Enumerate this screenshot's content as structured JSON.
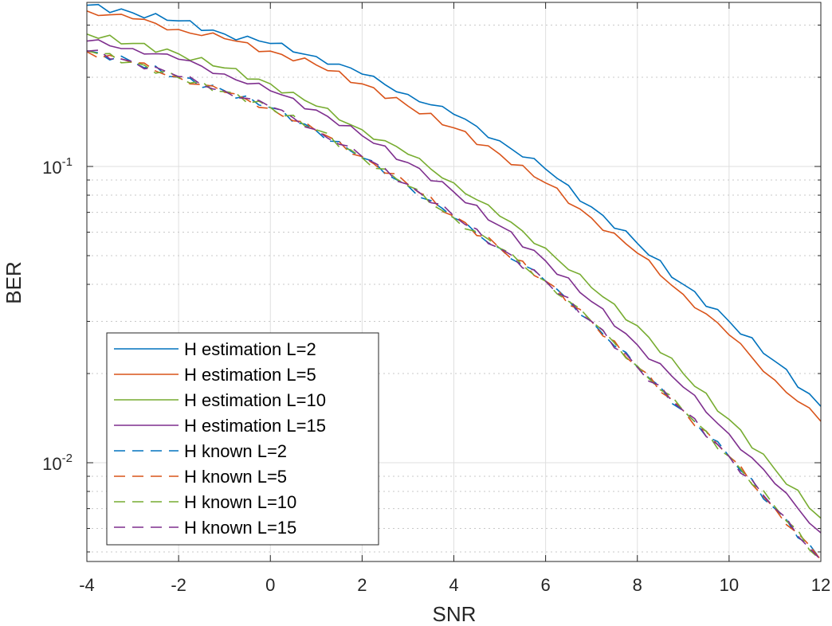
{
  "chart_data": {
    "type": "line",
    "xlabel": "SNR",
    "ylabel": "BER",
    "xlim": [
      -4,
      12
    ],
    "ylim": [
      0.0045,
      0.36
    ],
    "yscale": "log",
    "grid": true,
    "minor_grid_y": true,
    "xticks": [
      -4,
      -2,
      0,
      2,
      4,
      6,
      8,
      10,
      12
    ],
    "xtick_labels": [
      "-4",
      "-2",
      "0",
      "2",
      "4",
      "6",
      "8",
      "10",
      "12"
    ],
    "yticks": [
      {
        "value": 0.1,
        "base": "10",
        "exp": "-1"
      },
      {
        "value": 0.01,
        "base": "10",
        "exp": "-2"
      }
    ],
    "legend_position": "bottom-left",
    "x": [
      -4,
      -3,
      -2,
      -1,
      0,
      1,
      2,
      3,
      4,
      5,
      6,
      7,
      8,
      9,
      10,
      11,
      12
    ],
    "series": [
      {
        "name": "H estimation L=2",
        "color": "#0072BD",
        "style": "solid",
        "values": [
          0.35,
          0.33,
          0.31,
          0.28,
          0.26,
          0.235,
          0.205,
          0.175,
          0.15,
          0.122,
          0.098,
          0.073,
          0.055,
          0.04,
          0.03,
          0.022,
          0.0155
        ]
      },
      {
        "name": "H estimation L=5",
        "color": "#D95319",
        "style": "solid",
        "values": [
          0.335,
          0.315,
          0.29,
          0.27,
          0.245,
          0.22,
          0.19,
          0.16,
          0.135,
          0.11,
          0.088,
          0.067,
          0.051,
          0.037,
          0.027,
          0.019,
          0.0138
        ]
      },
      {
        "name": "H estimation L=10",
        "color": "#77AC30",
        "style": "solid",
        "values": [
          0.28,
          0.26,
          0.24,
          0.215,
          0.19,
          0.16,
          0.133,
          0.11,
          0.088,
          0.068,
          0.053,
          0.039,
          0.029,
          0.02,
          0.014,
          0.0095,
          0.0065
        ]
      },
      {
        "name": "H estimation L=15",
        "color": "#7E2F8E",
        "style": "solid",
        "values": [
          0.265,
          0.25,
          0.23,
          0.205,
          0.18,
          0.155,
          0.127,
          0.103,
          0.082,
          0.063,
          0.048,
          0.035,
          0.025,
          0.018,
          0.0125,
          0.0085,
          0.0058
        ]
      },
      {
        "name": "H known L=2",
        "color": "#0072BD",
        "style": "dashed",
        "values": [
          0.245,
          0.225,
          0.2,
          0.18,
          0.158,
          0.132,
          0.107,
          0.086,
          0.067,
          0.053,
          0.041,
          0.03,
          0.021,
          0.015,
          0.0105,
          0.007,
          0.0047
        ]
      },
      {
        "name": "H known L=5",
        "color": "#D95319",
        "style": "dashed",
        "values": [
          0.244,
          0.224,
          0.2,
          0.178,
          0.157,
          0.132,
          0.108,
          0.087,
          0.068,
          0.053,
          0.041,
          0.03,
          0.021,
          0.015,
          0.0105,
          0.007,
          0.0047
        ]
      },
      {
        "name": "H known L=10",
        "color": "#77AC30",
        "style": "dashed",
        "values": [
          0.246,
          0.225,
          0.199,
          0.179,
          0.158,
          0.133,
          0.107,
          0.086,
          0.067,
          0.053,
          0.041,
          0.03,
          0.0212,
          0.015,
          0.0105,
          0.0071,
          0.0047
        ]
      },
      {
        "name": "H known L=15",
        "color": "#7E2F8E",
        "style": "dashed",
        "values": [
          0.245,
          0.226,
          0.201,
          0.18,
          0.159,
          0.133,
          0.108,
          0.087,
          0.068,
          0.053,
          0.041,
          0.03,
          0.021,
          0.015,
          0.0105,
          0.007,
          0.0047
        ]
      }
    ]
  }
}
